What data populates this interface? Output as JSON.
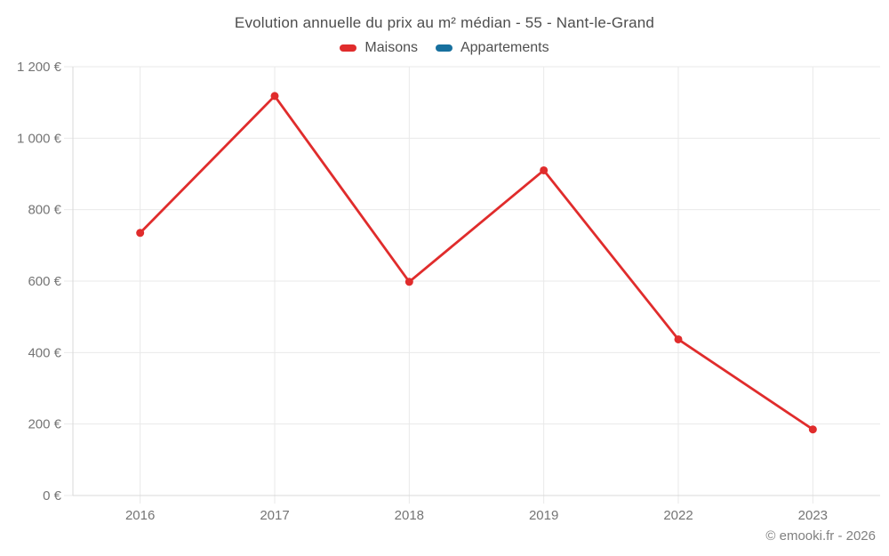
{
  "footer": {
    "copyright": "© emooki.fr - 2026"
  },
  "chart_data": {
    "type": "line",
    "title": "Evolution annuelle du prix au m² médian - 55 - Nant-le-Grand",
    "categories": [
      "2016",
      "2017",
      "2018",
      "2019",
      "2022",
      "2023"
    ],
    "series": [
      {
        "name": "Maisons",
        "color": "#e02c2c",
        "values": [
          735,
          1118,
          598,
          910,
          437,
          185
        ]
      },
      {
        "name": "Appartements",
        "color": "#17709e",
        "values": [
          null,
          null,
          null,
          null,
          null,
          null
        ]
      }
    ],
    "xlabel": "",
    "ylabel": "",
    "ylim": [
      0,
      1200
    ],
    "y_step": 200,
    "y_tick_labels": [
      "0 €",
      "200 €",
      "400 €",
      "600 €",
      "800 €",
      "1 000 €",
      "1 200 €"
    ],
    "y_tick_unit": "€",
    "grid": true,
    "legend_position": "top",
    "point_radius": 4.5,
    "line_width": 2.8,
    "colors": {
      "grid": "#e9e9e9",
      "axis": "#d9d9d9",
      "tick_label": "#757575",
      "title_text": "#4d4d4d"
    }
  }
}
